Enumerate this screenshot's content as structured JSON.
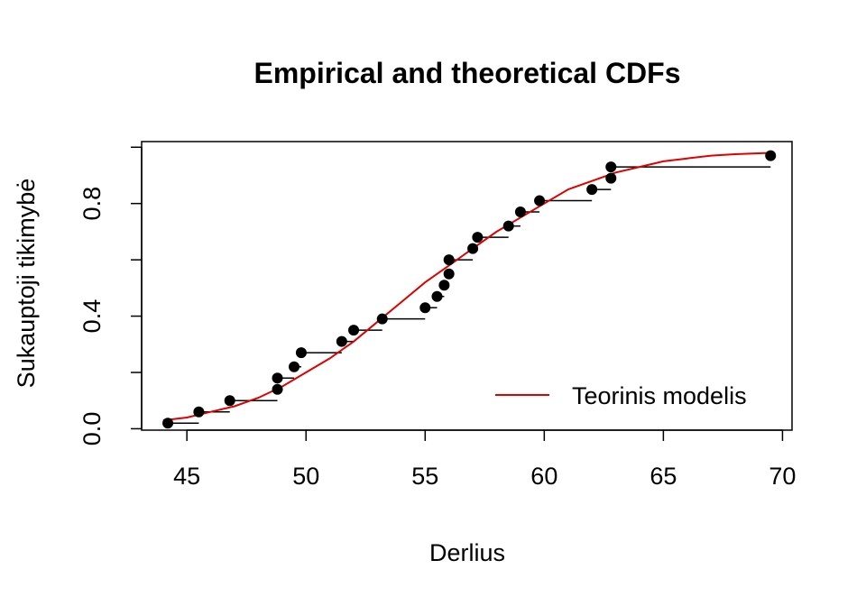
{
  "chart_data": {
    "type": "scatter",
    "title": "Empirical and theoretical CDFs",
    "xlabel": "Derlius",
    "ylabel": "Sukauptoji tikimybė",
    "xlim": [
      43.1,
      70.4
    ],
    "ylim": [
      -0.005,
      1.02
    ],
    "x_ticks": [
      45,
      50,
      55,
      60,
      65,
      70
    ],
    "x_tick_labels": [
      "45",
      "50",
      "55",
      "60",
      "65",
      "70"
    ],
    "y_ticks": [
      0.0,
      0.2,
      0.4,
      0.6,
      0.8,
      1.0
    ],
    "y_tick_labels": [
      "0.0",
      "",
      "0.4",
      "",
      "0.8",
      ""
    ],
    "legend": {
      "position": "bottom-right",
      "entries": [
        {
          "label": "Teorinis modelis",
          "color": "#e00000"
        }
      ]
    },
    "empirical": {
      "name": "",
      "color": "#000000",
      "points": [
        {
          "x": 44.2,
          "y": 0.02
        },
        {
          "x": 45.5,
          "y": 0.06
        },
        {
          "x": 46.8,
          "y": 0.1
        },
        {
          "x": 48.8,
          "y": 0.14
        },
        {
          "x": 48.8,
          "y": 0.18
        },
        {
          "x": 49.5,
          "y": 0.22
        },
        {
          "x": 49.8,
          "y": 0.27
        },
        {
          "x": 51.5,
          "y": 0.31
        },
        {
          "x": 52.0,
          "y": 0.35
        },
        {
          "x": 53.2,
          "y": 0.39
        },
        {
          "x": 55.0,
          "y": 0.43
        },
        {
          "x": 55.5,
          "y": 0.47
        },
        {
          "x": 55.8,
          "y": 0.51
        },
        {
          "x": 56.0,
          "y": 0.55
        },
        {
          "x": 56.0,
          "y": 0.6
        },
        {
          "x": 57.0,
          "y": 0.64
        },
        {
          "x": 57.2,
          "y": 0.68
        },
        {
          "x": 58.5,
          "y": 0.72
        },
        {
          "x": 59.0,
          "y": 0.77
        },
        {
          "x": 59.8,
          "y": 0.81
        },
        {
          "x": 62.0,
          "y": 0.85
        },
        {
          "x": 62.8,
          "y": 0.89
        },
        {
          "x": 62.8,
          "y": 0.93
        },
        {
          "x": 69.5,
          "y": 0.97
        }
      ]
    },
    "theoretical": {
      "name": "Teorinis modelis",
      "color": "#e00000",
      "x": [
        44.0,
        45.0,
        46.0,
        47.0,
        48.0,
        49.0,
        50.0,
        51.0,
        52.0,
        53.0,
        54.0,
        55.0,
        56.0,
        57.0,
        58.0,
        59.0,
        60.0,
        61.0,
        62.0,
        63.0,
        64.0,
        65.0,
        66.0,
        67.0,
        68.0,
        69.5
      ],
      "y": [
        0.03,
        0.04,
        0.06,
        0.08,
        0.11,
        0.15,
        0.2,
        0.25,
        0.31,
        0.38,
        0.45,
        0.52,
        0.58,
        0.64,
        0.7,
        0.75,
        0.8,
        0.85,
        0.88,
        0.91,
        0.93,
        0.95,
        0.96,
        0.97,
        0.975,
        0.98
      ]
    }
  }
}
